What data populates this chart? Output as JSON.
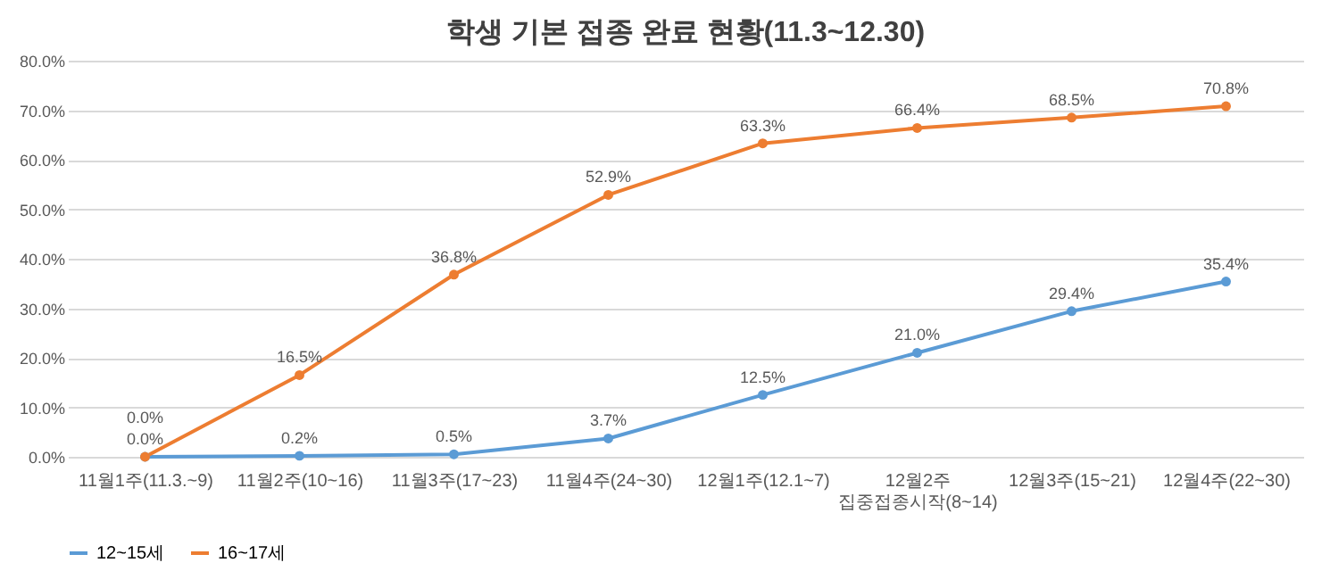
{
  "chart_data": {
    "type": "line",
    "title": "학생 기본 접종 완료 현황(11.3~12.30)",
    "categories": [
      "11월1주(11.3.~9)",
      "11월2주(10~16)",
      "11월3주(17~23)",
      "11월4주(24~30)",
      "12월1주(12.1~7)",
      "12월2주\n집중접종시작(8~14)",
      "12월3주(15~21)",
      "12월4주(22~30)"
    ],
    "series": [
      {
        "name": "12~15세",
        "color": "#5b9bd5",
        "values": [
          0.0,
          0.2,
          0.5,
          3.7,
          12.5,
          21.0,
          29.4,
          35.4
        ],
        "value_labels": [
          "0.0%",
          "0.2%",
          "0.5%",
          "3.7%",
          "12.5%",
          "21.0%",
          "29.4%",
          "35.4%"
        ]
      },
      {
        "name": "16~17세",
        "color": "#ed7d31",
        "values": [
          0.0,
          16.5,
          36.8,
          52.9,
          63.3,
          66.4,
          68.5,
          70.8
        ],
        "value_labels": [
          "0.0%",
          "16.5%",
          "36.8%",
          "52.9%",
          "63.3%",
          "66.4%",
          "68.5%",
          "70.8%"
        ]
      }
    ],
    "ylim": [
      0,
      80
    ],
    "yticks": [
      {
        "value": 0,
        "label": "0.0%"
      },
      {
        "value": 10,
        "label": "10.0%"
      },
      {
        "value": 20,
        "label": "20.0%"
      },
      {
        "value": 30,
        "label": "30.0%"
      },
      {
        "value": 40,
        "label": "40.0%"
      },
      {
        "value": 50,
        "label": "50.0%"
      },
      {
        "value": 60,
        "label": "60.0%"
      },
      {
        "value": 70,
        "label": "70.0%"
      },
      {
        "value": 80,
        "label": "80.0%"
      }
    ],
    "grid": "y",
    "legend": "bottom",
    "marker": "circle",
    "line_style": "solid"
  }
}
